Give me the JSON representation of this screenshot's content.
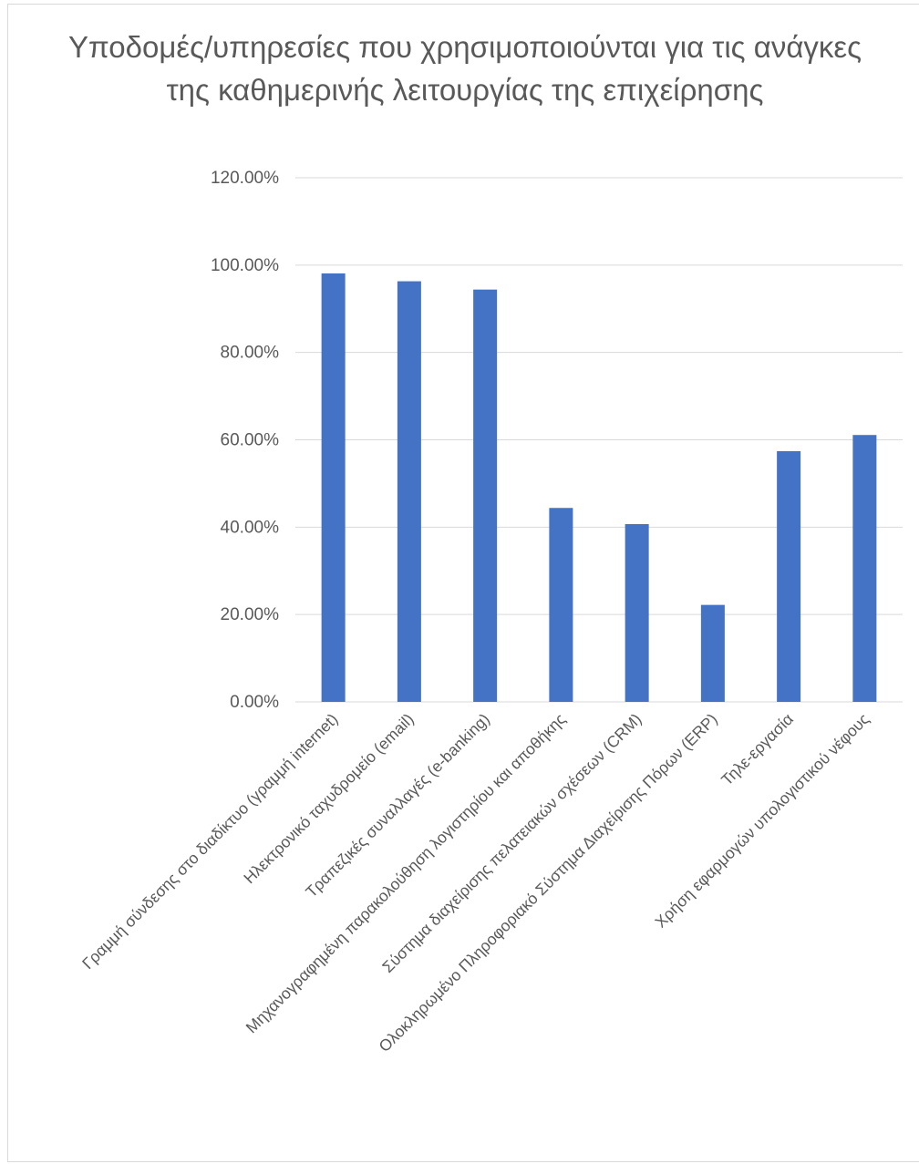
{
  "chart_data": {
    "type": "bar",
    "title": "Υποδομές/υπηρεσίες που χρησιμοποιούνται για τις ανάγκες της καθημερινής λειτουργίας της επιχείρησης",
    "categories": [
      "Γραμμή σύνδεσης στο διαδίκτυο (γραμμή internet)",
      "Ηλεκτρονικό ταχυδρομείο (email)",
      "Τραπεζικές συναλλαγές (e-banking)",
      "Μηχανογραφημένη παρακολούθηση λογιστηρίου και αποθήκης",
      "Σύστημα διαχείρισης πελατειακών σχέσεων (CRM)",
      "Ολοκληρωμένο Πληροφοριακό Σύστημα Διαχείρισης Πόρων (ERP)",
      "Τηλε-εργασία",
      "Χρήση εφαρμογών υπολογιστικού νέφους"
    ],
    "values": [
      98.1,
      96.3,
      94.4,
      44.4,
      40.7,
      22.2,
      57.4,
      61.1
    ],
    "yticks": [
      "0.00%",
      "20.00%",
      "40.00%",
      "60.00%",
      "80.00%",
      "100.00%",
      "120.00%"
    ],
    "ylim": [
      0,
      120
    ],
    "grid": true,
    "colors": {
      "bar": "#4472c4",
      "grid": "#d9d9d9",
      "text": "#595959"
    }
  }
}
